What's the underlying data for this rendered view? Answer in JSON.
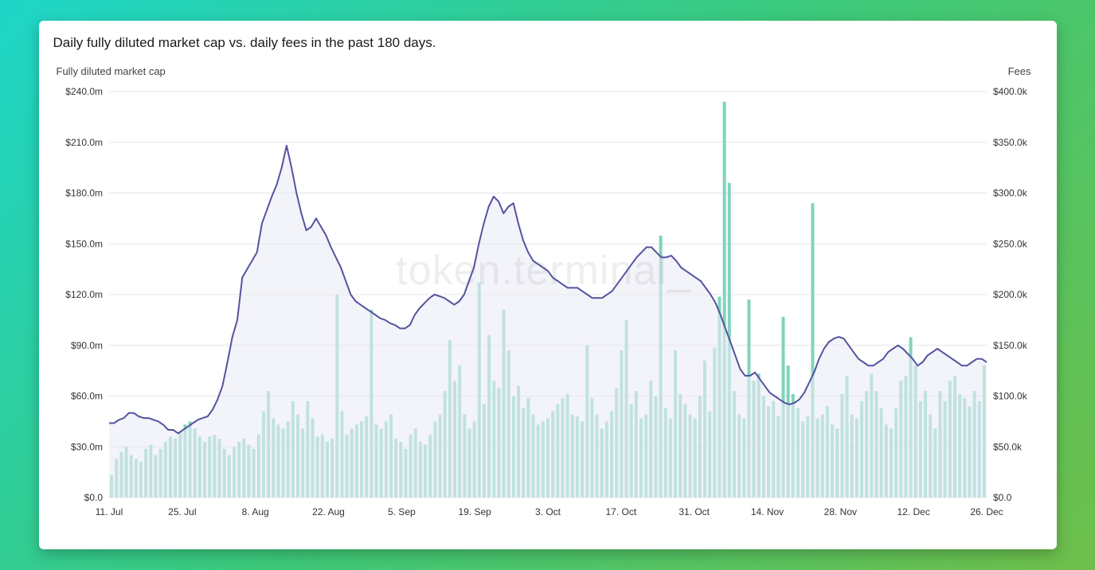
{
  "title": "Daily fully diluted market cap vs. daily fees in the past 180 days.",
  "left_axis_label": "Fully diluted market cap",
  "right_axis_label": "Fees",
  "watermark": "token.terminal_",
  "background_gradient": [
    "#1ed6c8",
    "#3cc97a",
    "#6fbf4a"
  ],
  "panel_bg": "#ffffff",
  "left_axis": {
    "min": 0,
    "max": 240,
    "step": 30,
    "suffix": "m",
    "prefix": "$",
    "ticks": [
      "$0.0",
      "$30.0m",
      "$60.0m",
      "$90.0m",
      "$120.0m",
      "$150.0m",
      "$180.0m",
      "$210.0m",
      "$240.0m"
    ]
  },
  "right_axis": {
    "min": 0,
    "max": 400,
    "step": 50,
    "suffix": "k",
    "prefix": "$",
    "ticks": [
      "$0.0",
      "$50.0k",
      "$100.0k",
      "$150.0k",
      "$200.0k",
      "$250.0k",
      "$300.0k",
      "$350.0k",
      "$400.0k"
    ]
  },
  "x_ticks": [
    "11. Jul",
    "25. Jul",
    "8. Aug",
    "22. Aug",
    "5. Sep",
    "19. Sep",
    "3. Oct",
    "17. Oct",
    "31. Oct",
    "14. Nov",
    "28. Nov",
    "12. Dec",
    "26. Dec"
  ],
  "grid_color": "#e4e4e4",
  "bar_color": "#7fd4bd",
  "line_color": "#54549e",
  "area_fill": "#ebebf7",
  "area_opacity": 0.6,
  "line_width": 2,
  "bar_width_ratio": 0.65,
  "market_cap_series": [
    44,
    44,
    46,
    47,
    50,
    50,
    48,
    47,
    47,
    46,
    45,
    43,
    40,
    40,
    38,
    40,
    42,
    44,
    46,
    47,
    48,
    52,
    58,
    66,
    80,
    95,
    105,
    130,
    135,
    140,
    145,
    162,
    170,
    178,
    185,
    195,
    208,
    195,
    180,
    168,
    158,
    160,
    165,
    160,
    155,
    148,
    142,
    136,
    128,
    120,
    116,
    114,
    112,
    110,
    108,
    106,
    105,
    103,
    102,
    100,
    100,
    102,
    108,
    112,
    115,
    118,
    120,
    119,
    118,
    116,
    114,
    116,
    120,
    128,
    136,
    150,
    162,
    172,
    178,
    175,
    168,
    172,
    174,
    162,
    152,
    145,
    140,
    138,
    136,
    134,
    130,
    128,
    126,
    124,
    124,
    124,
    122,
    120,
    118,
    118,
    118,
    120,
    122,
    126,
    130,
    134,
    138,
    142,
    145,
    148,
    148,
    145,
    142,
    142,
    143,
    140,
    136,
    134,
    132,
    130,
    128,
    124,
    120,
    115,
    108,
    100,
    92,
    84,
    76,
    72,
    72,
    74,
    70,
    66,
    62,
    60,
    58,
    56,
    55,
    56,
    58,
    62,
    68,
    74,
    82,
    88,
    92,
    94,
    95,
    94,
    90,
    86,
    82,
    80,
    78,
    78,
    80,
    82,
    86,
    88,
    90,
    88,
    85,
    82,
    78,
    80,
    84,
    86,
    88,
    86,
    84,
    82,
    80,
    78,
    78,
    80,
    82,
    82,
    80
  ],
  "fees_series": [
    22,
    38,
    45,
    50,
    42,
    38,
    35,
    48,
    52,
    42,
    48,
    55,
    60,
    58,
    65,
    72,
    75,
    68,
    60,
    55,
    60,
    62,
    58,
    48,
    42,
    50,
    55,
    58,
    52,
    48,
    62,
    85,
    105,
    78,
    72,
    68,
    75,
    95,
    82,
    68,
    95,
    78,
    60,
    62,
    55,
    58,
    200,
    85,
    62,
    68,
    72,
    75,
    80,
    185,
    72,
    68,
    75,
    82,
    58,
    55,
    48,
    62,
    68,
    55,
    52,
    62,
    75,
    82,
    105,
    155,
    115,
    130,
    82,
    68,
    75,
    212,
    92,
    160,
    115,
    108,
    185,
    145,
    100,
    110,
    88,
    98,
    82,
    72,
    75,
    78,
    85,
    92,
    98,
    102,
    82,
    80,
    75,
    150,
    98,
    82,
    68,
    75,
    85,
    108,
    145,
    175,
    92,
    105,
    78,
    82,
    115,
    100,
    258,
    88,
    78,
    145,
    102,
    92,
    82,
    78,
    100,
    135,
    85,
    148,
    198,
    390,
    310,
    105,
    82,
    78,
    195,
    115,
    122,
    100,
    90,
    95,
    80,
    178,
    130,
    102,
    88,
    75,
    80,
    290,
    78,
    82,
    90,
    72,
    68,
    102,
    120,
    82,
    78,
    95,
    105,
    122,
    105,
    88,
    72,
    68,
    88,
    115,
    120,
    158,
    130,
    95,
    105,
    82,
    68,
    105,
    95,
    115,
    120,
    102,
    98,
    90,
    105,
    95,
    130
  ]
}
